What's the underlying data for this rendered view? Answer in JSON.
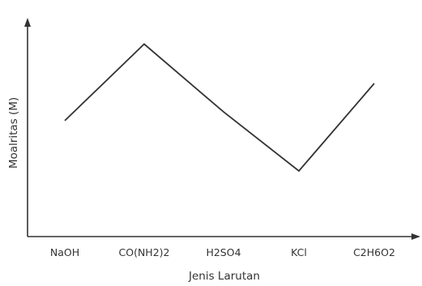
{
  "chart_data": {
    "type": "line",
    "title": "",
    "xlabel": "Jenis Larutan",
    "ylabel": "Moalritas (M)",
    "categories": [
      "NaOH",
      "CO(NH2)2",
      "H2SO4",
      "KCl",
      "C2H6O2"
    ],
    "series": [
      {
        "values": [
          0.53,
          0.88,
          0.57,
          0.3,
          0.7
        ]
      }
    ],
    "ylim": [
      0,
      1
    ],
    "grid": false,
    "y_ticks_shown": false,
    "line_color": "#333333"
  }
}
